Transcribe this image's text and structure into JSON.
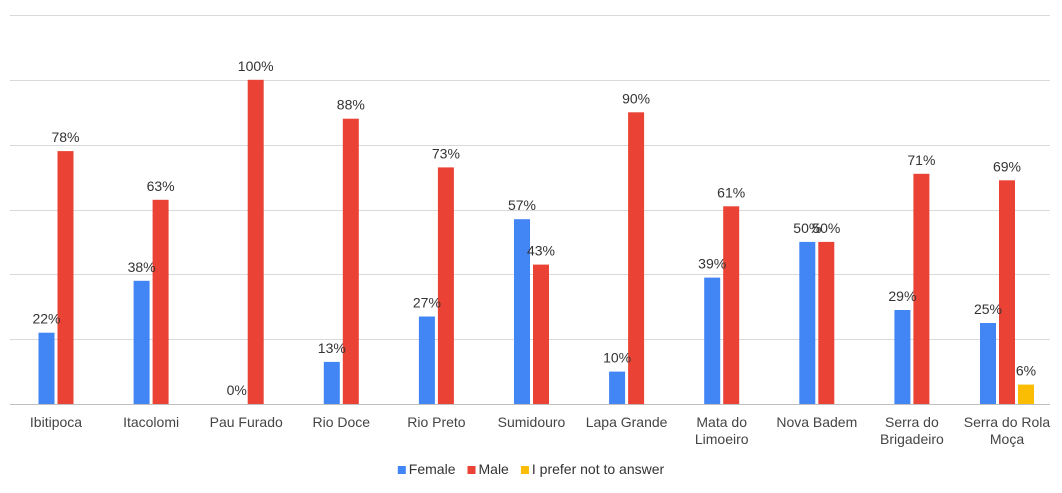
{
  "chart_data": {
    "type": "bar",
    "categories": [
      [
        "Ibitipoca"
      ],
      [
        "Itacolomi"
      ],
      [
        "Pau Furado"
      ],
      [
        "Rio Doce"
      ],
      [
        "Rio Preto"
      ],
      [
        "Sumidouro"
      ],
      [
        "Lapa Grande"
      ],
      [
        "Mata do",
        "Limoeiro"
      ],
      [
        "Nova Badem"
      ],
      [
        "Serra do",
        "Brigadeiro"
      ],
      [
        "Serra do Rola",
        "Moça"
      ]
    ],
    "series": [
      {
        "name": "Female",
        "color": "#4285F4",
        "values": [
          22,
          38,
          0,
          13,
          27,
          57,
          10,
          39,
          50,
          29,
          25
        ],
        "labels": [
          "22%",
          "38%",
          "0%",
          "13%",
          "27%",
          "57%",
          "10%",
          "39%",
          "50%",
          "29%",
          "25%"
        ]
      },
      {
        "name": "Male",
        "color": "#EA4335",
        "values": [
          78,
          63,
          100,
          88,
          73,
          43,
          90,
          61,
          50,
          71,
          69
        ],
        "labels": [
          "78%",
          "63%",
          "100%",
          "88%",
          "73%",
          "43%",
          "90%",
          "61%",
          "50%",
          "71%",
          "69%"
        ]
      },
      {
        "name": "I prefer not to answer",
        "color": "#FBBC04",
        "values": [
          0,
          0,
          0,
          0,
          0,
          0,
          0,
          0,
          0,
          0,
          6
        ],
        "labels": [
          "",
          "",
          "",
          "",
          "",
          "",
          "",
          "",
          "",
          "",
          "6%"
        ]
      }
    ],
    "title": "",
    "xlabel": "",
    "ylabel": "",
    "ylim": [
      0,
      120
    ],
    "yticks": [
      0,
      20,
      40,
      60,
      80,
      100,
      120
    ],
    "grid": true,
    "legend_position": "bottom"
  }
}
